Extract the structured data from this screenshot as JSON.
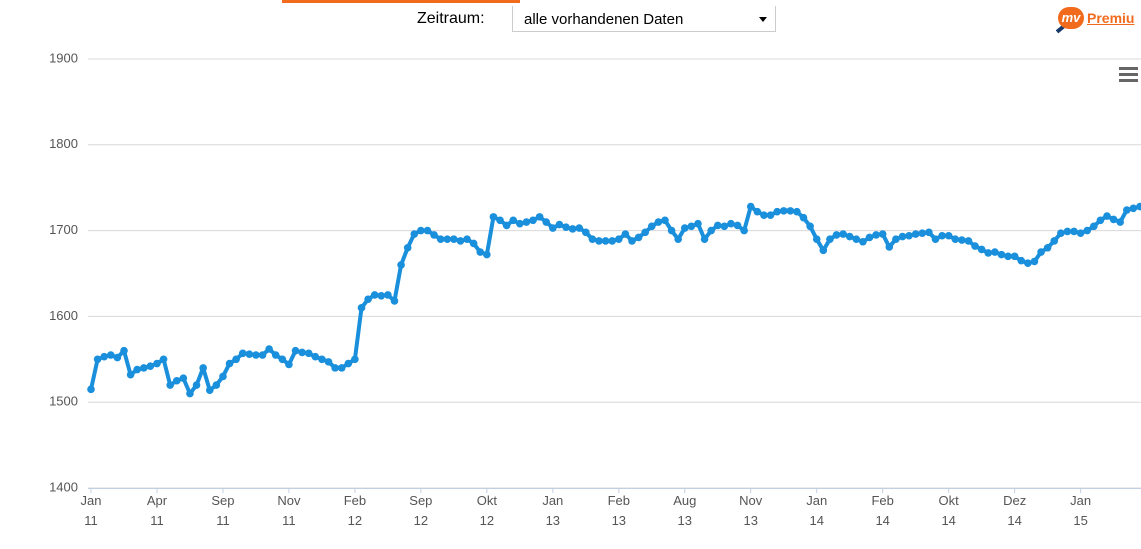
{
  "ui": {
    "period_label": "Zeitraum:",
    "period_select": "alle vorhandenen Daten",
    "logo_mv": "mv",
    "logo_text": "Premiu"
  },
  "chart_data": {
    "type": "line",
    "color": "#1a8fdc",
    "grid": true,
    "ylim": [
      1400,
      1900
    ],
    "yticks": [
      1400,
      1500,
      1600,
      1700,
      1800,
      1900
    ],
    "xlim": [
      0,
      159
    ],
    "xticks": [
      {
        "value": 0,
        "label": "Jan\n11"
      },
      {
        "value": 10,
        "label": "Apr\n11"
      },
      {
        "value": 20,
        "label": "Sep\n11"
      },
      {
        "value": 30,
        "label": "Nov\n11"
      },
      {
        "value": 40,
        "label": "Feb\n12"
      },
      {
        "value": 50,
        "label": "Sep\n12"
      },
      {
        "value": 60,
        "label": "Okt\n12"
      },
      {
        "value": 70,
        "label": "Jan\n13"
      },
      {
        "value": 80,
        "label": "Feb\n13"
      },
      {
        "value": 90,
        "label": "Aug\n13"
      },
      {
        "value": 100,
        "label": "Nov\n13"
      },
      {
        "value": 110,
        "label": "Jan\n14"
      },
      {
        "value": 120,
        "label": "Feb\n14"
      },
      {
        "value": 130,
        "label": "Okt\n14"
      },
      {
        "value": 140,
        "label": "Dez\n14"
      },
      {
        "value": 150,
        "label": "Jan\n15"
      }
    ],
    "values": [
      1515,
      1550,
      1553,
      1555,
      1552,
      1560,
      1532,
      1538,
      1540,
      1542,
      1545,
      1550,
      1520,
      1525,
      1528,
      1510,
      1520,
      1540,
      1514,
      1520,
      1530,
      1545,
      1550,
      1557,
      1556,
      1555,
      1555,
      1562,
      1555,
      1550,
      1544,
      1560,
      1558,
      1557,
      1553,
      1550,
      1547,
      1540,
      1540,
      1545,
      1550,
      1610,
      1620,
      1625,
      1624,
      1625,
      1618,
      1660,
      1680,
      1696,
      1700,
      1700,
      1695,
      1690,
      1690,
      1690,
      1688,
      1690,
      1685,
      1675,
      1672,
      1716,
      1712,
      1706,
      1712,
      1708,
      1710,
      1712,
      1716,
      1710,
      1703,
      1707,
      1704,
      1702,
      1703,
      1698,
      1690,
      1688,
      1688,
      1688,
      1690,
      1696,
      1688,
      1692,
      1698,
      1705,
      1710,
      1712,
      1700,
      1690,
      1703,
      1705,
      1708,
      1690,
      1700,
      1706,
      1705,
      1708,
      1706,
      1700,
      1728,
      1722,
      1718,
      1718,
      1722,
      1723,
      1723,
      1722,
      1715,
      1705,
      1690,
      1677,
      1690,
      1695,
      1696,
      1693,
      1690,
      1687,
      1692,
      1695,
      1696,
      1681,
      1690,
      1693,
      1694,
      1696,
      1697,
      1698,
      1690,
      1694,
      1694,
      1690,
      1689,
      1688,
      1682,
      1678,
      1674,
      1675,
      1672,
      1670,
      1670,
      1665,
      1662,
      1664,
      1675,
      1680,
      1688,
      1697,
      1699,
      1699,
      1697,
      1700,
      1705,
      1712,
      1717,
      1713,
      1710,
      1724,
      1726,
      1728
    ]
  }
}
